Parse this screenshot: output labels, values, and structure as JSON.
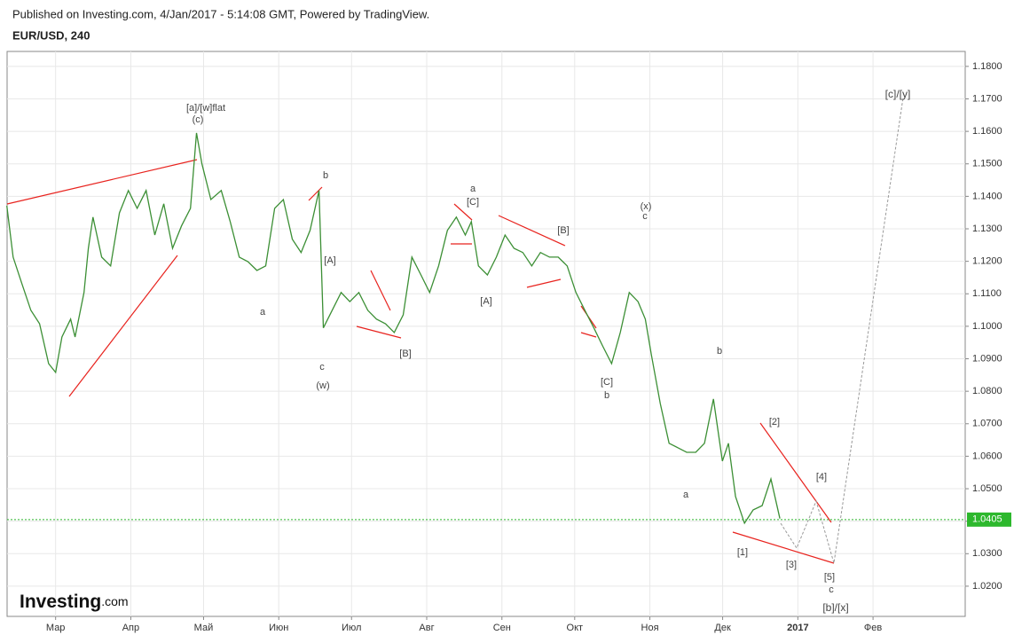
{
  "header": {
    "published": "Published on Investing.com, 4/Jan/2017 - 5:14:08 GMT, Powered by TradingView.",
    "logo": "Investing",
    "logo_suffix": ".com"
  },
  "chart_data": {
    "type": "line",
    "title": "EUR/USD, 240",
    "color": "#3c8f35",
    "x": [
      39.9,
      42.5,
      46.1,
      49.8,
      53.4,
      57.1,
      60,
      62.6,
      66.2,
      68.0,
      71.7,
      73.5,
      75.4,
      79.0,
      82.7,
      86.3,
      90.0,
      93.6,
      97.3,
      100.9,
      104.6,
      108.2,
      111.9,
      115.6,
      118.1,
      120.3,
      124.0,
      128.3,
      132.0,
      135.7,
      139.3,
      143.0,
      146.6,
      150.3,
      153.9,
      157.6,
      161.2,
      164.9,
      168.6,
      170.4,
      174.0,
      177.7,
      181.3,
      185.0,
      188.7,
      192.3,
      196.0,
      199.6,
      203.3,
      206.9,
      210.6,
      214.2,
      217.9,
      221.5,
      225.2,
      228.9,
      231.4,
      234.3,
      238.0,
      241.7,
      245.3,
      249.0,
      252.6,
      256.3,
      259.9,
      263.6,
      267.2,
      270.9,
      274.5,
      278.2,
      281.9,
      285.5,
      289.2,
      292.8,
      296.5,
      300.1,
      303.1,
      305.6,
      309.3,
      312.9,
      316.6,
      320.2,
      323.9,
      327.5,
      331.2,
      334.9,
      337.4,
      340.3,
      344.0,
      347.6,
      351.3,
      354.9,
      358.6
    ],
    "values": [
      1.1371,
      1.1213,
      1.1131,
      1.1049,
      1.1008,
      1.0885,
      1.0858,
      1.0967,
      1.1022,
      1.0967,
      1.1104,
      1.124,
      1.1336,
      1.1213,
      1.1186,
      1.1349,
      1.1418,
      1.1363,
      1.1418,
      1.1281,
      1.1377,
      1.124,
      1.1309,
      1.1363,
      1.1595,
      1.15,
      1.139,
      1.1418,
      1.1322,
      1.1213,
      1.1199,
      1.1172,
      1.1186,
      1.1363,
      1.139,
      1.1268,
      1.1227,
      1.1295,
      1.1418,
      1.0995,
      1.1049,
      1.1104,
      1.1076,
      1.1104,
      1.1049,
      1.1022,
      1.1008,
      1.0981,
      1.1035,
      1.1213,
      1.1158,
      1.1104,
      1.1186,
      1.1295,
      1.1336,
      1.1281,
      1.1322,
      1.1186,
      1.1158,
      1.1213,
      1.1281,
      1.124,
      1.1227,
      1.1186,
      1.1227,
      1.1213,
      1.1213,
      1.1186,
      1.1104,
      1.1049,
      1.0995,
      1.094,
      1.0885,
      1.0981,
      1.1104,
      1.1076,
      1.1022,
      1.0913,
      1.0762,
      1.064,
      1.0626,
      1.0612,
      1.0612,
      1.064,
      1.0776,
      1.0585,
      1.064,
      1.0476,
      1.0394,
      1.0435,
      1.0448,
      1.053,
      1.0408
    ],
    "xlim": [
      40,
      435
    ],
    "xticks": [
      {
        "value": 60,
        "label": "Мар"
      },
      {
        "value": 91,
        "label": "Апр"
      },
      {
        "value": 121,
        "label": "Май"
      },
      {
        "value": 152,
        "label": "Июн"
      },
      {
        "value": 182,
        "label": "Июл"
      },
      {
        "value": 213,
        "label": "Авг"
      },
      {
        "value": 244,
        "label": "Сен"
      },
      {
        "value": 274,
        "label": "Окт"
      },
      {
        "value": 305,
        "label": "Ноя"
      },
      {
        "value": 335,
        "label": "Дек"
      },
      {
        "value": 366,
        "label": "2017"
      },
      {
        "value": 397,
        "label": "Фев"
      }
    ],
    "ylim": [
      1.0107,
      1.1846
    ],
    "yticks": [
      {
        "value": 1.02,
        "label": "1.0200"
      },
      {
        "value": 1.03,
        "label": "1.0300"
      },
      {
        "value": 1.04,
        "label": "1.0400"
      },
      {
        "value": 1.05,
        "label": "1.0500"
      },
      {
        "value": 1.06,
        "label": "1.0600"
      },
      {
        "value": 1.07,
        "label": "1.0700"
      },
      {
        "value": 1.08,
        "label": "1.0800"
      },
      {
        "value": 1.09,
        "label": "1.0900"
      },
      {
        "value": 1.1,
        "label": "1.1000"
      },
      {
        "value": 1.11,
        "label": "1.1100"
      },
      {
        "value": 1.12,
        "label": "1.1200"
      },
      {
        "value": 1.13,
        "label": "1.1300"
      },
      {
        "value": 1.14,
        "label": "1.1400"
      },
      {
        "value": 1.15,
        "label": "1.1500"
      },
      {
        "value": 1.16,
        "label": "1.1600"
      },
      {
        "value": 1.17,
        "label": "1.1700"
      },
      {
        "value": 1.18,
        "label": "1.1800"
      }
    ],
    "grid": true,
    "last_price": {
      "value": 1.0405,
      "label": "1.0405"
    },
    "annotations": [
      "[a]/[w]flat",
      "(c)",
      "b",
      "a",
      "[A]",
      "c",
      "(w)",
      "[B]",
      "a",
      "[C]",
      "[A]",
      "[B]",
      "(x)",
      "c",
      "[C]",
      "b",
      "b",
      "a",
      "[2]",
      "[1]",
      "[4]",
      "[3]",
      "[5]",
      "c",
      "[b]/[x]",
      "[c]/[y]"
    ]
  }
}
